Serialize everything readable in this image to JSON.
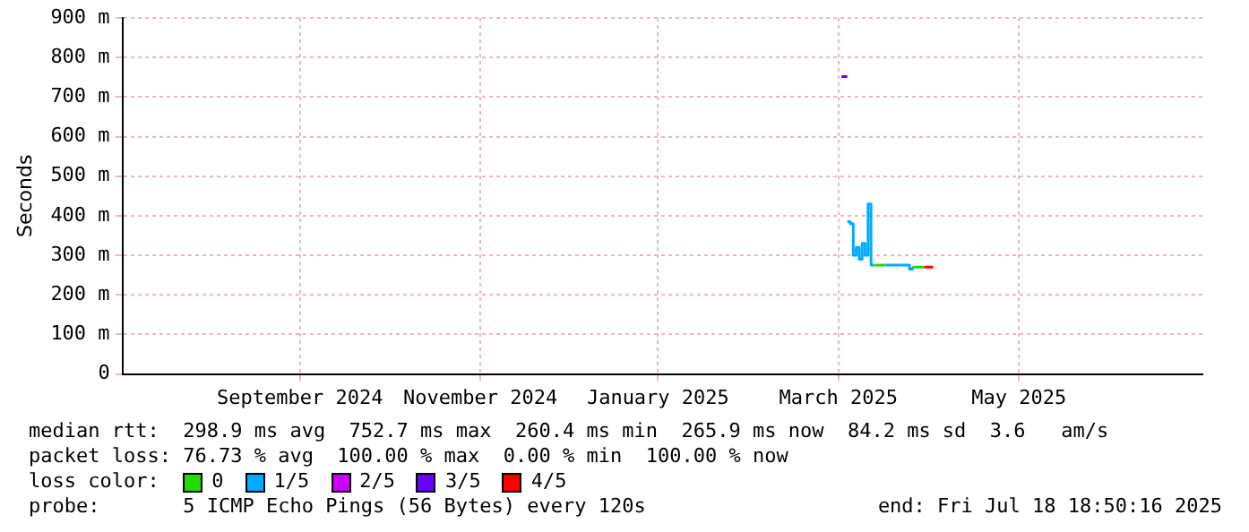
{
  "chart_data": {
    "type": "step",
    "ylabel": "Seconds",
    "legend_title": "loss color:",
    "legend": "bottom",
    "grid": true,
    "marker": "none",
    "xlim": [
      "2024-07-18",
      "2025-07-18"
    ],
    "xticks": [
      {
        "value": "2024-09-16",
        "label": "September 2024"
      },
      {
        "value": "2024-11-16",
        "label": "November 2024"
      },
      {
        "value": "2025-01-15",
        "label": "January 2025"
      },
      {
        "value": "2025-03-17",
        "label": "March 2025"
      },
      {
        "value": "2025-05-17",
        "label": "May 2025"
      }
    ],
    "ylim": [
      0,
      900
    ],
    "yticks": [
      0,
      {
        "value": 100,
        "label": "100 m"
      },
      {
        "value": 200,
        "label": "200 m"
      },
      {
        "value": 300,
        "label": "300 m"
      },
      {
        "value": 400,
        "label": "400 m"
      },
      {
        "value": 500,
        "label": "500 m"
      },
      {
        "value": 600,
        "label": "600 m"
      },
      {
        "value": 700,
        "label": "700 m"
      },
      {
        "value": 800,
        "label": "800 m"
      },
      {
        "value": 900,
        "label": "900 m"
      }
    ],
    "series": [
      {
        "name": "0",
        "color": "#22dd00",
        "x": [
          "2025-03-29",
          "2025-04-02",
          "2025-04-03",
          "2025-04-11",
          "2025-04-15"
        ],
        "values": [
          275,
          275,
          null,
          270,
          270
        ]
      },
      {
        "name": "1/5",
        "color": "#00aaff",
        "x": [
          "2025-03-20",
          "2025-03-21",
          "2025-03-22",
          "2025-03-23",
          "2025-03-24",
          "2025-03-25",
          "2025-03-26",
          "2025-03-27",
          "2025-03-28",
          "2025-03-29",
          "2025-03-30",
          "2025-04-02",
          "2025-04-09",
          "2025-04-10",
          "2025-04-11"
        ],
        "values": [
          385,
          380,
          300,
          320,
          290,
          330,
          300,
          430,
          275,
          275,
          null,
          275,
          275,
          265,
          270
        ]
      },
      {
        "name": "2/5",
        "color": "#cc00ff"
      },
      {
        "name": "3/5",
        "color": "#6a00ff",
        "x": [
          "2025-03-18",
          "2025-03-20"
        ],
        "values": [
          752,
          752
        ]
      },
      {
        "name": "4/5",
        "color": "#ff0000",
        "x": [
          "2025-04-15",
          "2025-04-18"
        ],
        "values": [
          270,
          270
        ]
      }
    ],
    "annotations": [
      "median rtt:  298.9 ms avg  752.7 ms max  260.4 ms min  265.9 ms now  84.2 ms sd  3.6   am/s",
      "packet loss: 76.73 % avg  100.00 % max  0.00 % min  100.00 % now",
      "probe:       5 ICMP Echo Pings (56 Bytes) every 120s",
      "end: Fri Jul 18 18:50:16 2025"
    ]
  }
}
